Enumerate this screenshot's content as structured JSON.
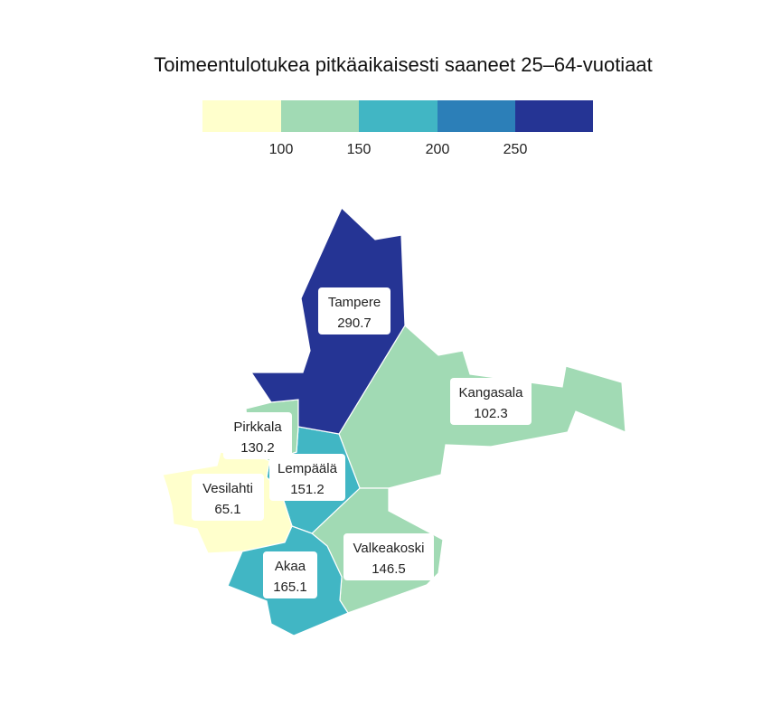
{
  "title": "Toimeentulotukea pitkäaikaisesti saaneet 25–64-vuotiaat",
  "legend": {
    "colors": [
      "#ffffcc",
      "#a1dab4",
      "#41b6c4",
      "#2c7fb8",
      "#253494"
    ],
    "ticks": [
      "100",
      "150",
      "200",
      "250"
    ]
  },
  "regions": [
    {
      "name": "Tampere",
      "value": "290.7",
      "color": "#253494"
    },
    {
      "name": "Kangasala",
      "value": "102.3",
      "color": "#a1dab4"
    },
    {
      "name": "Pirkkala",
      "value": "130.2",
      "color": "#a1dab4"
    },
    {
      "name": "Lempäälä",
      "value": "151.2",
      "color": "#41b6c4"
    },
    {
      "name": "Vesilahti",
      "value": "65.1",
      "color": "#ffffcc"
    },
    {
      "name": "Akaa",
      "value": "165.1",
      "color": "#41b6c4"
    },
    {
      "name": "Valkeakoski",
      "value": "146.5",
      "color": "#a1dab4"
    }
  ]
}
